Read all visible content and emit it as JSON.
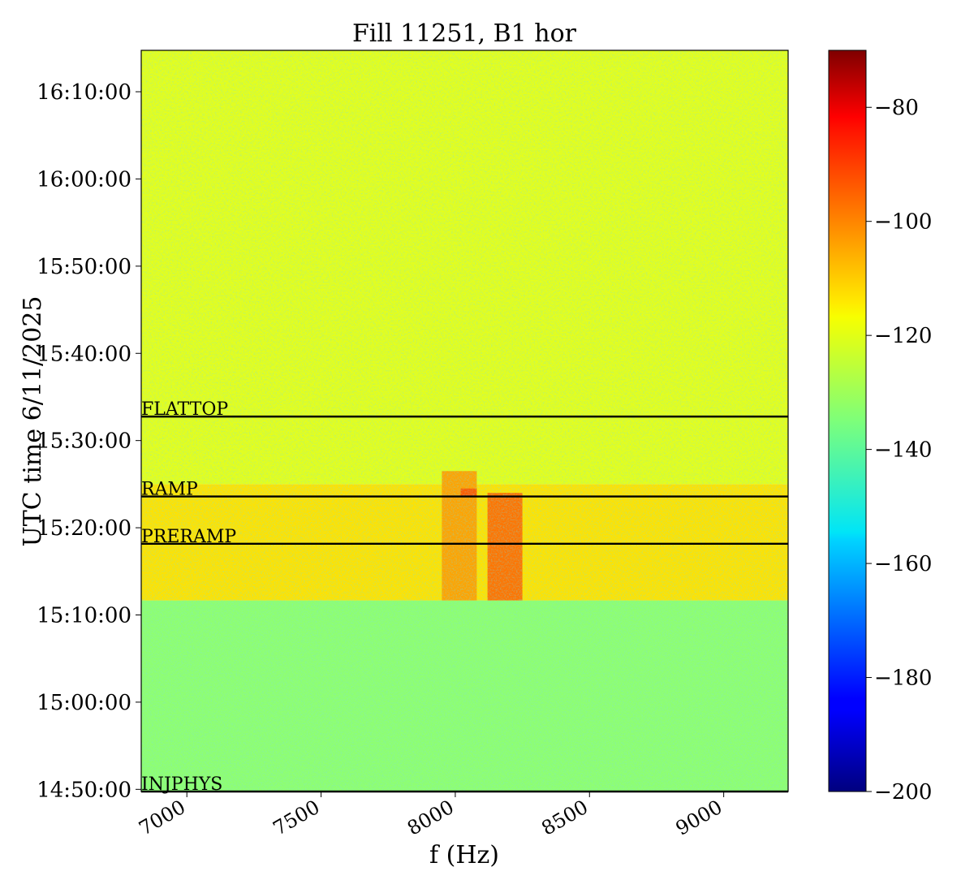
{
  "chart_data": {
    "type": "heatmap",
    "title": "Fill 11251, B1 hor",
    "xlabel": "f (Hz)",
    "ylabel": "UTC time 6/11/2025",
    "xlim": [
      6830,
      9240
    ],
    "ylim": [
      "14:49:45",
      "16:14:45"
    ],
    "x_ticks": [
      {
        "value": 7000,
        "label": "7000"
      },
      {
        "value": 7500,
        "label": "7500"
      },
      {
        "value": 8000,
        "label": "8000"
      },
      {
        "value": 8500,
        "label": "8500"
      },
      {
        "value": 9000,
        "label": "9000"
      }
    ],
    "y_ticks": [
      {
        "value": "14:50:00",
        "label": "14:50:00"
      },
      {
        "value": "15:00:00",
        "label": "15:00:00"
      },
      {
        "value": "15:10:00",
        "label": "15:10:00"
      },
      {
        "value": "15:20:00",
        "label": "15:20:00"
      },
      {
        "value": "15:30:00",
        "label": "15:30:00"
      },
      {
        "value": "15:40:00",
        "label": "15:40:00"
      },
      {
        "value": "15:50:00",
        "label": "15:50:00"
      },
      {
        "value": "16:00:00",
        "label": "16:00:00"
      },
      {
        "value": "16:10:00",
        "label": "16:10:00"
      }
    ],
    "colormap": "jet",
    "colorbar": {
      "range": [
        -200,
        -70
      ],
      "ticks": [
        {
          "value": -80,
          "label": "−80"
        },
        {
          "value": -100,
          "label": "−100"
        },
        {
          "value": -120,
          "label": "−120"
        },
        {
          "value": -140,
          "label": "−140"
        },
        {
          "value": -160,
          "label": "−160"
        },
        {
          "value": -180,
          "label": "−180"
        },
        {
          "value": -200,
          "label": "−200"
        }
      ]
    },
    "regions": [
      {
        "t_start": "14:49:45",
        "t_end": "15:11:40",
        "f_start": 6830,
        "f_end": 9240,
        "level": -133
      },
      {
        "t_start": "15:11:40",
        "t_end": "15:25:00",
        "f_start": 6830,
        "f_end": 9240,
        "level": -115
      },
      {
        "t_start": "15:25:00",
        "t_end": "16:14:45",
        "f_start": 6830,
        "f_end": 9240,
        "level": -122
      },
      {
        "t_start": "15:11:40",
        "t_end": "15:26:30",
        "f_start": 7950,
        "f_end": 8080,
        "level": -107
      },
      {
        "t_start": "15:11:40",
        "t_end": "15:24:00",
        "f_start": 8120,
        "f_end": 8250,
        "level": -101
      },
      {
        "t_start": "15:23:30",
        "t_end": "15:24:30",
        "f_start": 8020,
        "f_end": 8080,
        "level": -98
      }
    ],
    "annotations": [
      {
        "label": "FLATTOP",
        "time": "15:32:45"
      },
      {
        "label": "RAMP",
        "time": "15:23:35"
      },
      {
        "label": "PRERAMP",
        "time": "15:18:10"
      },
      {
        "label": "INJPHYS",
        "time": "14:49:45"
      }
    ]
  }
}
